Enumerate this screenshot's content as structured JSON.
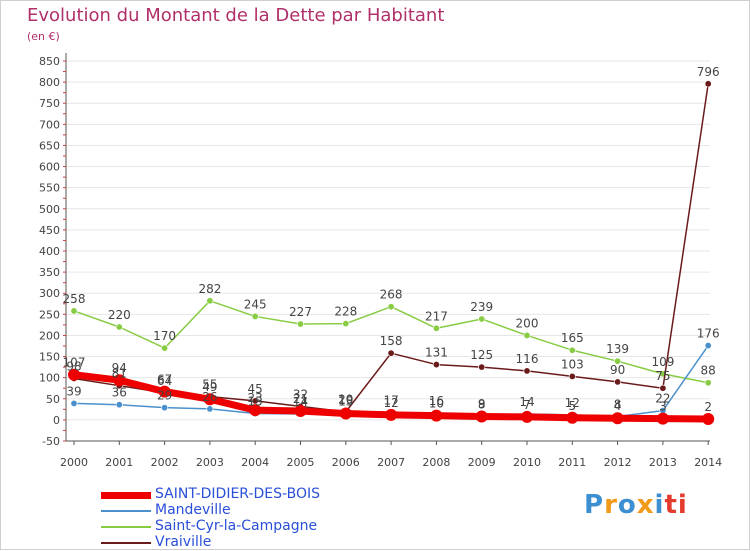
{
  "title": "Evolution du Montant de la Dette par Habitant",
  "subtitle": "(en €)",
  "logo": {
    "letters": [
      "P",
      "r",
      "o",
      "x",
      "i",
      "t",
      "i"
    ],
    "colors": [
      "#3c8fd0",
      "#f29a18",
      "#3c8fd0",
      "#f29a18",
      "#3c8fd0",
      "#e53b2d",
      "#e53b2d"
    ]
  },
  "colors": {
    "title": "#b0306a",
    "axis": "#555555",
    "grid": "#e6e6e6",
    "label": "#444444"
  },
  "chart_data": {
    "type": "line",
    "x": [
      "2000",
      "2001",
      "2002",
      "2003",
      "2004",
      "2005",
      "2006",
      "2007",
      "2008",
      "2009",
      "2010",
      "2011",
      "2012",
      "2013",
      "2014"
    ],
    "yticks": [
      "850",
      "800",
      "750",
      "700",
      "650",
      "600",
      "550",
      "500",
      "450",
      "400",
      "350",
      "300",
      "250",
      "200",
      "150",
      "100",
      "50",
      "0",
      "-50"
    ],
    "ylim": [
      -50,
      850
    ],
    "grid": true,
    "legend_position": "bottom-left",
    "series": [
      {
        "name": "SAINT-DIDIER-DES-BOIS",
        "color": "#ee0000",
        "values": [
          107,
          94,
          67,
          49,
          23,
          21,
          15,
          12,
          10,
          8,
          7,
          5,
          4,
          3,
          2
        ],
        "labels": [
          "107",
          "94",
          "67",
          "49",
          "23",
          "21",
          "15",
          "12",
          "10",
          "8",
          "7",
          "5",
          "4",
          "3",
          "2"
        ],
        "labeled": [
          true,
          true,
          true,
          true,
          true,
          true,
          true,
          true,
          true,
          true,
          true,
          true,
          true,
          true,
          true
        ]
      },
      {
        "name": "Mandeville",
        "color": "#4a90cc",
        "values": [
          39,
          36,
          29,
          26,
          15,
          14,
          20,
          17,
          16,
          9,
          14,
          12,
          8,
          22,
          176
        ],
        "labels": [
          "39",
          "36",
          "29",
          "26",
          "15",
          "14",
          "20",
          "17",
          "16",
          "9",
          "14",
          "12",
          "8",
          "22",
          "176"
        ],
        "labeled": [
          true,
          true,
          true,
          true,
          true,
          true,
          true,
          true,
          true,
          true,
          true,
          true,
          true,
          true,
          true
        ]
      },
      {
        "name": "Saint-Cyr-la-Campagne",
        "color": "#88cc44",
        "values": [
          258,
          220,
          170,
          282,
          245,
          227,
          228,
          268,
          217,
          239,
          200,
          165,
          139,
          109,
          88
        ],
        "labels": [
          "258",
          "220",
          "170",
          "282",
          "245",
          "227",
          "228",
          "268",
          "217",
          "239",
          "200",
          "165",
          "139",
          "109",
          "88"
        ],
        "labeled": [
          true,
          true,
          true,
          true,
          true,
          true,
          true,
          true,
          true,
          true,
          true,
          true,
          true,
          true,
          true
        ]
      },
      {
        "name": "Vraiville",
        "color": "#6b1a1a",
        "values": [
          98,
          81,
          64,
          55,
          45,
          32,
          19,
          158,
          131,
          125,
          116,
          103,
          90,
          75,
          796
        ],
        "labels": [
          "98",
          "81",
          "64",
          "55",
          "45",
          "32",
          "19",
          "158",
          "131",
          "125",
          "116",
          "103",
          "90",
          "75",
          "796"
        ],
        "labeled": [
          true,
          true,
          true,
          true,
          true,
          true,
          true,
          true,
          true,
          true,
          true,
          true,
          true,
          true,
          true
        ]
      }
    ]
  }
}
